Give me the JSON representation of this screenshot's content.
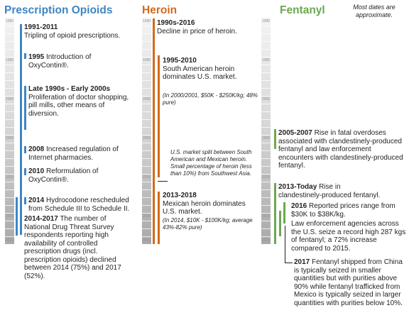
{
  "header": {
    "note": "Most dates are approximate.",
    "colors": {
      "opioids": "#3d85c6",
      "heroin": "#d2691e",
      "fentanyl": "#6aa84f"
    }
  },
  "columns": [
    {
      "title": "Prescription Opioids",
      "events": [
        {
          "date": "1991-2011",
          "text": "Tripling of opioid prescriptions."
        },
        {
          "date": "1995",
          "text": "Introduction of OxyContin®."
        },
        {
          "date": "Late 1990s - Early 2000s",
          "text": "Proliferation of doctor shopping, pill mills, other means of diversion."
        },
        {
          "date": "2008",
          "text": "Increased regulation of Internet pharmacies."
        },
        {
          "date": "2010",
          "text": "Reformulation of OxyContin®."
        },
        {
          "date": "2014",
          "text": "Hydrocodone rescheduled from Schedule III to Schedule II."
        },
        {
          "date": "2014-2017",
          "text": "The number of National Drug Threat Survey respondents reporting high availability of controlled prescription drugs (incl. prescription opioids) declined between 2014 (75%) and 2017 (52%)."
        }
      ]
    },
    {
      "title": "Heroin",
      "events": [
        {
          "date": "1990s-2016",
          "text": "Decline in price of heroin."
        },
        {
          "date": "1995-2010",
          "text": "South American heroin dominates U.S. market.",
          "note": "(In 2000/2001, $50K - $250K/kg; 48% pure)"
        },
        {
          "note": "U.S. market split between South American and Mexican heroin. Small percentage of heroin (less than 10%) from Southwest Asia."
        },
        {
          "date": "2013-2018",
          "text": "Mexican heroin dominates U.S. market.",
          "note": "(In 2014, $10K - $100K/kg; average 43%-82% pure)"
        }
      ]
    },
    {
      "title": "Fentanyl",
      "events": [
        {
          "date": "2005-2007",
          "text": "Rise in fatal overdoses associated with clandestinely-produced fentanyl and law enforcement encounters with clandestinely-produced fentanyl."
        },
        {
          "date": "2013-Today",
          "text": "Rise in clandestinely-produced fentanyl."
        },
        {
          "date": "2016",
          "text": "Reported prices range from $30K to $38K/kg."
        },
        {
          "text": "Law enforcement agencies across the U.S. seize a record high 287 kgs of fentanyl; a 72% increase compared to 2015."
        },
        {
          "date": "2017",
          "text": "Fentanyl shipped from China is typically seized in smaller quantities but with purities above 90% while fentanyl trafficked from Mexico is typically seized in larger quantities with purities below 10%."
        }
      ]
    }
  ],
  "axis": {
    "years": [
      "1990",
      "1995",
      "2000",
      "2005",
      "2010",
      "2015",
      "2019"
    ]
  }
}
